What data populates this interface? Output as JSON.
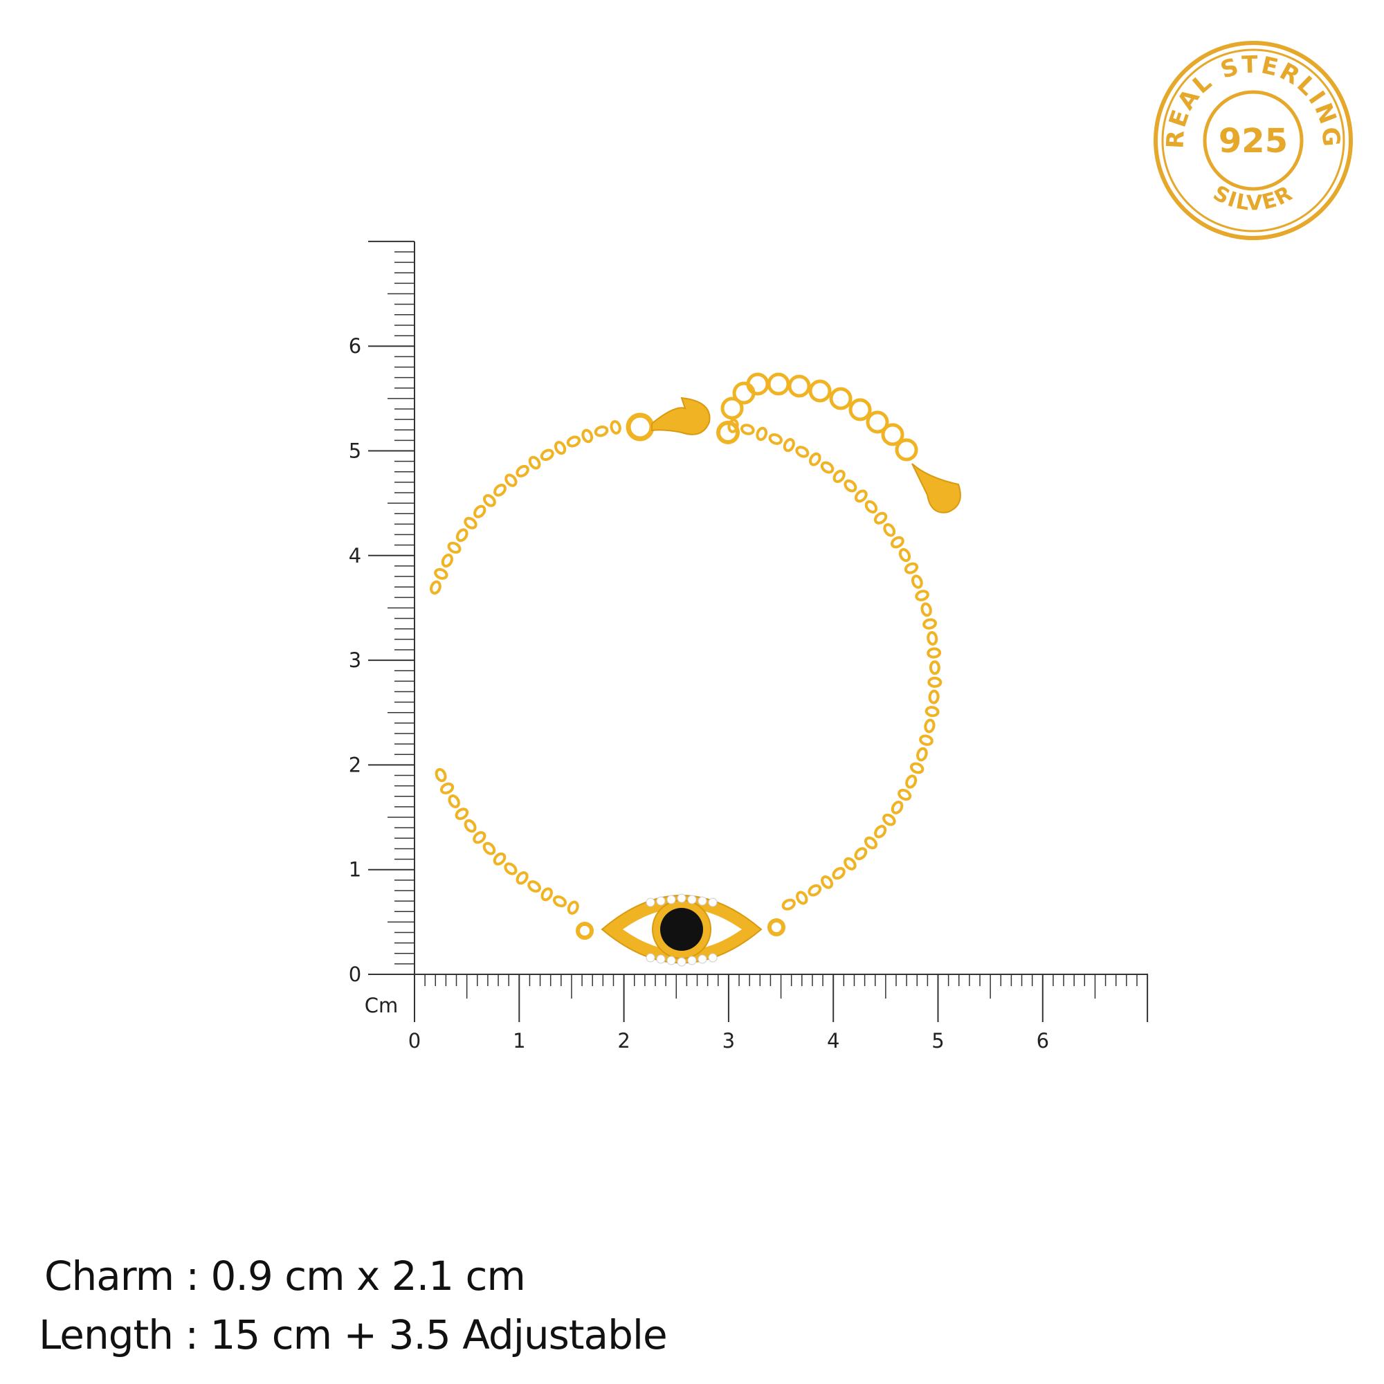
{
  "stamp": {
    "top_text": "REAL STERLING",
    "center_text": "925",
    "bottom_text": "SILVER",
    "color": "#E5A82A"
  },
  "ruler": {
    "unit": "Cm",
    "y_labels": [
      "0",
      "1",
      "2",
      "3",
      "4",
      "5",
      "6"
    ],
    "x_labels": [
      "0",
      "1",
      "2",
      "3",
      "4",
      "5",
      "6"
    ],
    "range_cm": 7,
    "color": "#333333"
  },
  "product": {
    "metal_color": "#F0B323",
    "stone_color": "#111111"
  },
  "specs": {
    "charm": "Charm : 0.9 cm x 2.1 cm",
    "length": "Length : 15 cm + 3.5 Adjustable"
  }
}
